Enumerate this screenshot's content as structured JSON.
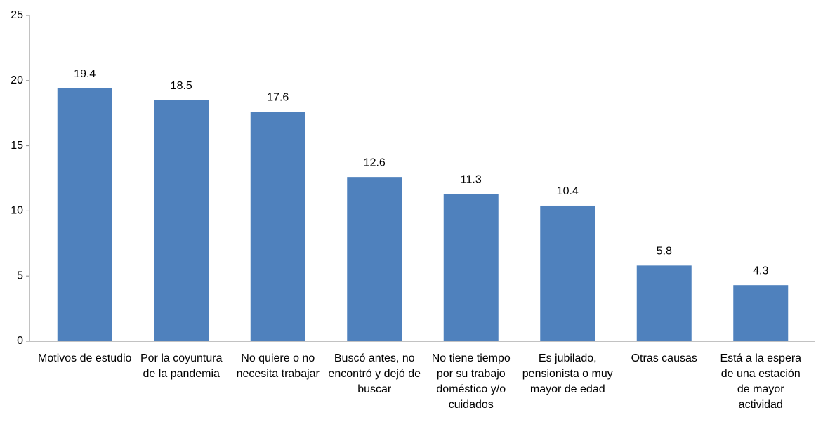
{
  "chart_data": {
    "type": "bar",
    "categories": [
      "Motivos de estudio",
      "Por la coyuntura de la pandemia",
      "No quiere o no necesita trabajar",
      "Buscó antes, no encontró y dejó de buscar",
      "No tiene tiempo por su trabajo doméstico y/o cuidados",
      "Es jubilado, pensionista o muy mayor de edad",
      "Otras causas",
      "Está a la espera de una estación de mayor actividad"
    ],
    "values": [
      19.4,
      18.5,
      17.6,
      12.6,
      11.3,
      10.4,
      5.8,
      4.3
    ],
    "color": "#4f81bd",
    "ylim": [
      0,
      25
    ],
    "yticks": [
      0,
      5,
      10,
      15,
      20,
      25
    ],
    "grid": false
  }
}
